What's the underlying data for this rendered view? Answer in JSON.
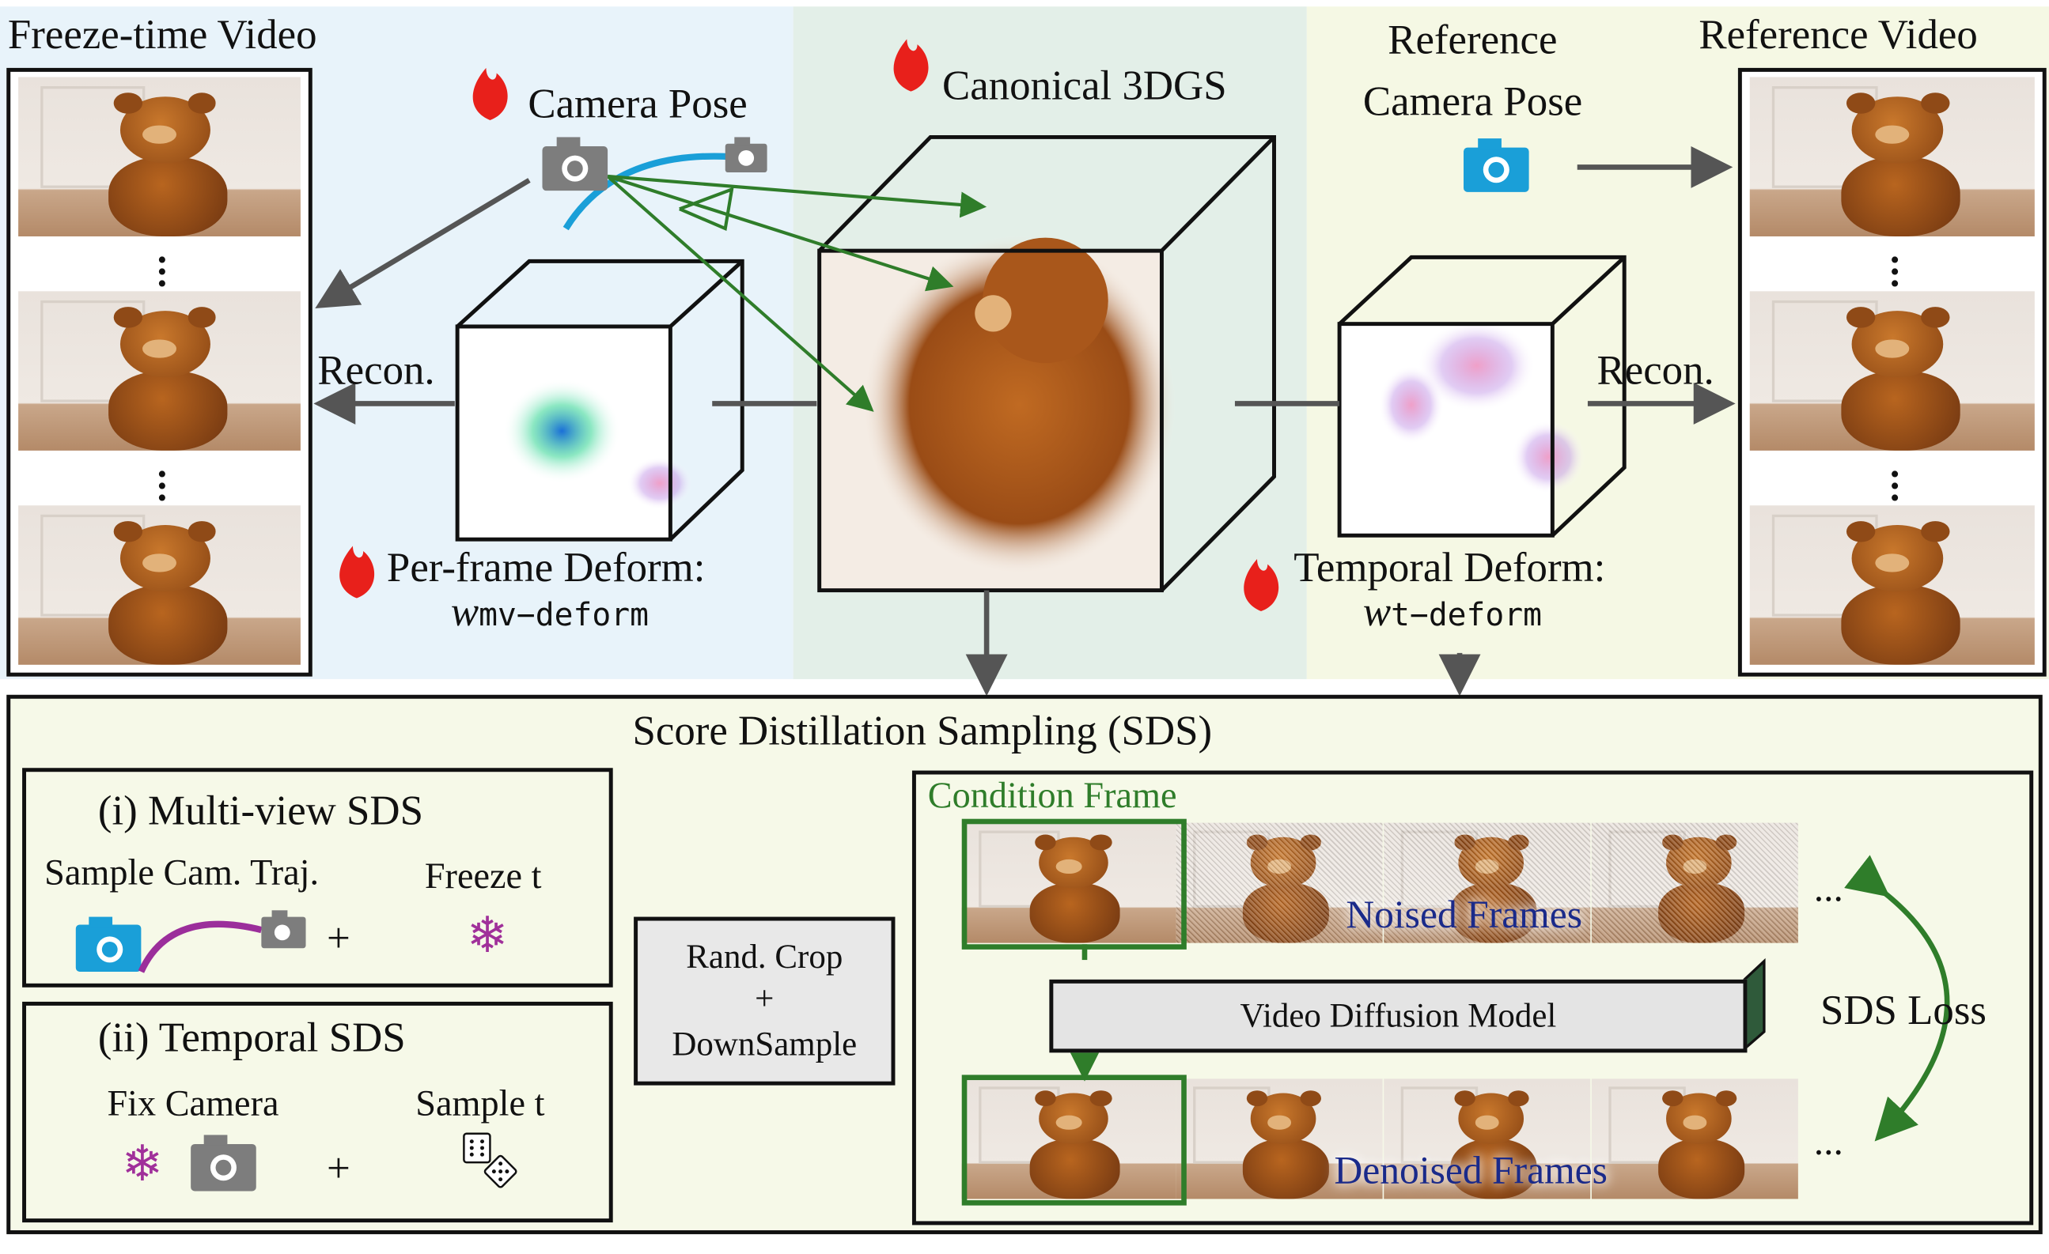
{
  "left_panel": {
    "title": "Freeze-time Video"
  },
  "camera_pose": {
    "label": "Camera Pose",
    "icon": "camera-icon",
    "trainable_icon": "fire-icon"
  },
  "canonical": {
    "label": "Canonical 3DGS",
    "trainable_icon": "fire-icon"
  },
  "reference_pose": {
    "line1": "Reference",
    "line2": "Camera Pose",
    "icon": "camera-icon"
  },
  "right_panel": {
    "title": "Reference Video"
  },
  "recon_left": "Recon.",
  "recon_right": "Recon.",
  "per_frame": {
    "label": "Per-frame Deform:",
    "symbol": "w",
    "subscript": "mv−deform"
  },
  "temporal_deform": {
    "label": "Temporal Deform:",
    "symbol": "w",
    "subscript": "t−deform"
  },
  "sds": {
    "title": "Score Distillation Sampling (SDS)",
    "multiview": {
      "title": "(i) Multi-view SDS",
      "left": "Sample Cam. Traj.",
      "right": "Freeze t",
      "plus": "+"
    },
    "temporal": {
      "title": "(ii) Temporal SDS",
      "left": "Fix Camera",
      "right": "Sample t",
      "plus": "+"
    },
    "crop": {
      "line1": "Rand. Crop",
      "line2": "+",
      "line3": "DownSample"
    },
    "condition": "Condition Frame",
    "noised": "Noised Frames",
    "denoised": "Denoised Frames",
    "model": "Video Diffusion Model",
    "ellipsis": "...",
    "loss": "SDS Loss"
  },
  "colors": {
    "fire": "#e8201b",
    "camera_blue": "#1a9fd8",
    "camera_gray": "#7d7d7d",
    "trajectory": "#9b2e9b",
    "snowflake": "#a0309a",
    "green": "#2f7d2a",
    "noised_text": "#1a2a8a",
    "arrow_gray": "#555555"
  }
}
